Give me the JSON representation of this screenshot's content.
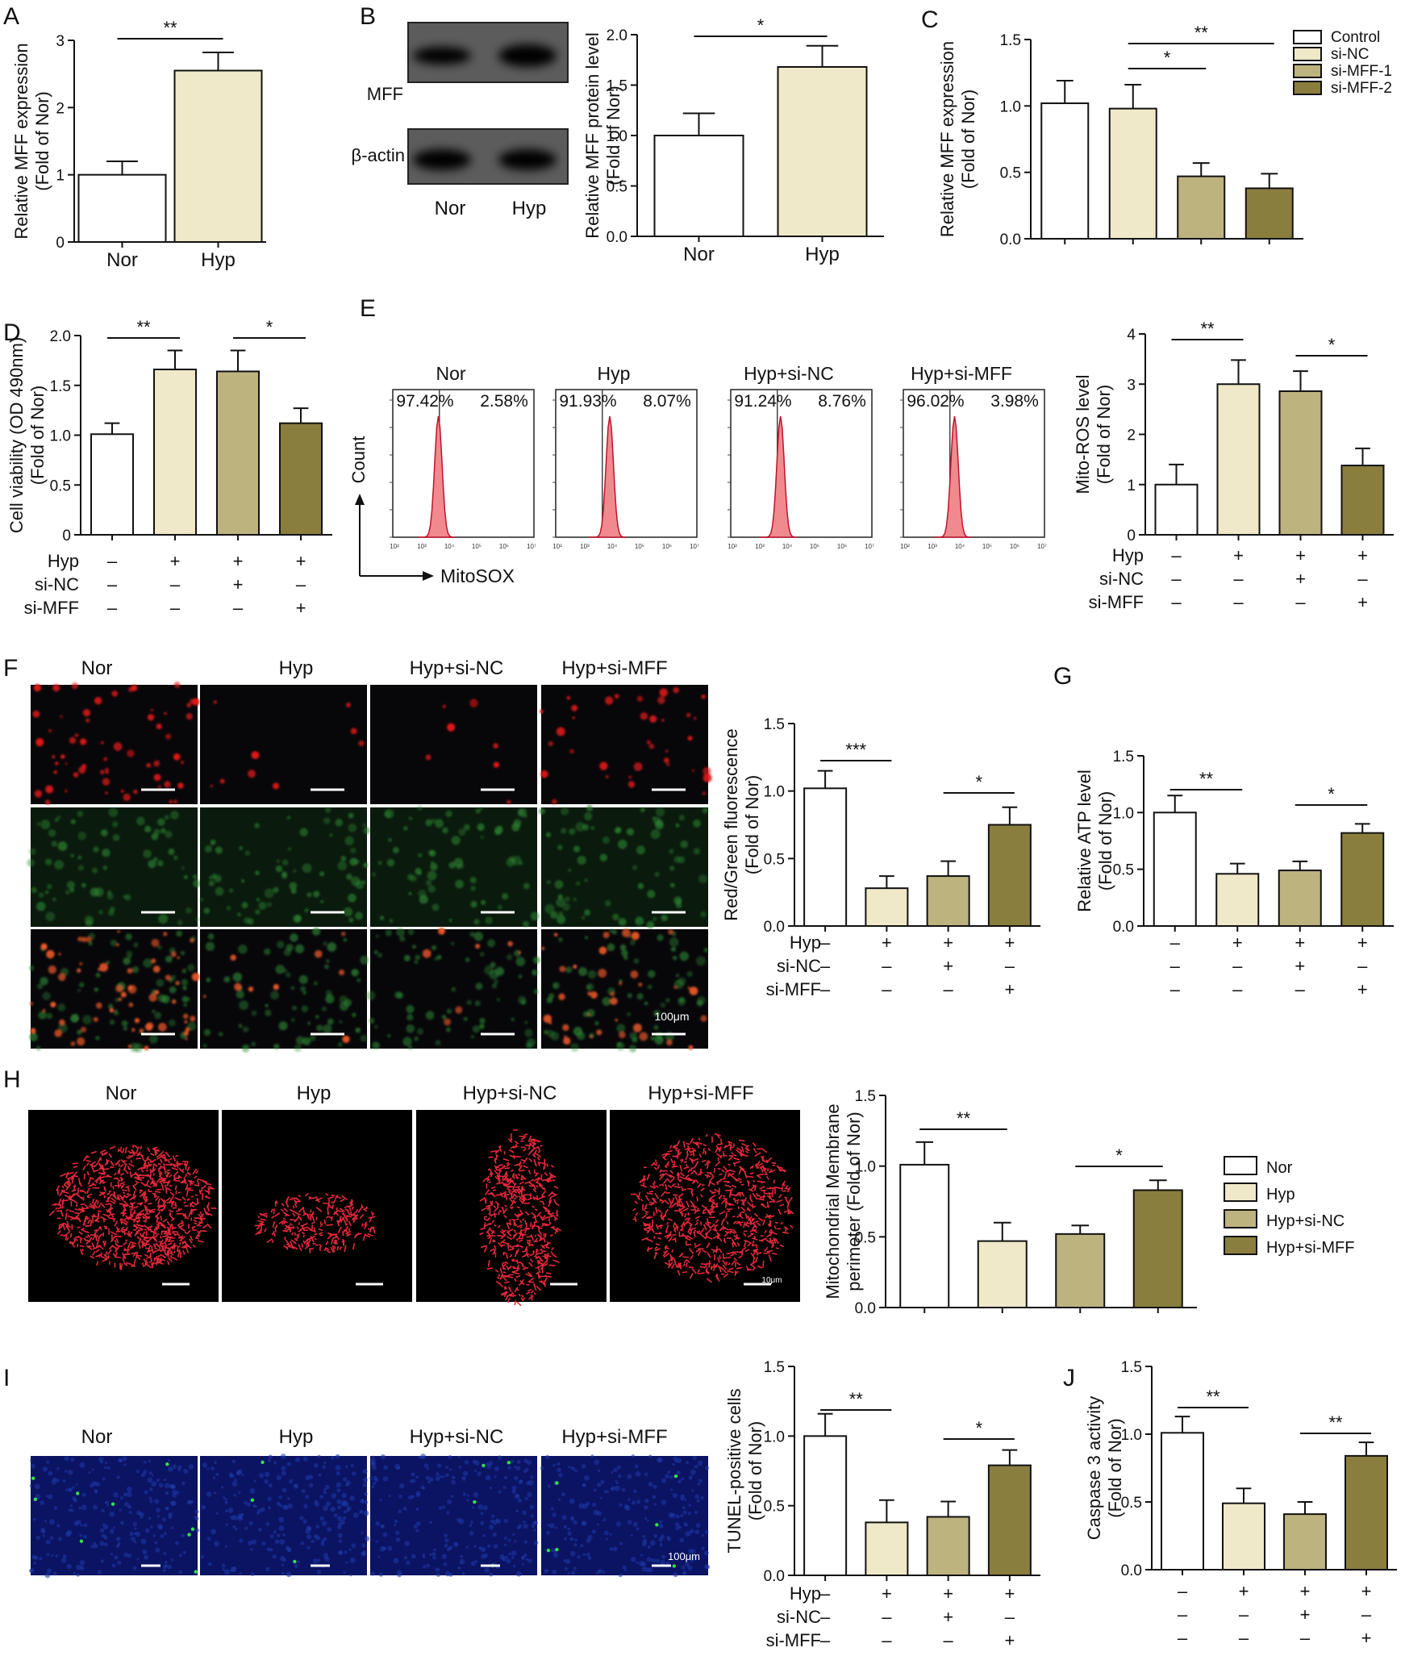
{
  "colors": {
    "control": "#ffffff",
    "light": "#efe9c9",
    "mid": "#bdb37f",
    "dark": "#8a7e3e",
    "mfff_red": "#e8283a",
    "histo_fill": "#f08a8f",
    "blot_bg": "#5c5c5c",
    "fluor_bg": "#07070a",
    "tunel_bg": "#0b1363"
  },
  "panel_letters": [
    "A",
    "B",
    "C",
    "D",
    "E",
    "F",
    "G",
    "H",
    "I",
    "J"
  ],
  "conditions": {
    "hyp_label": "Hyp",
    "sinc_label": "si-NC",
    "simff_label": "si-MFF",
    "plus": "+",
    "minus": "–",
    "hyp": [
      "–",
      "+",
      "+",
      "+"
    ],
    "sinc": [
      "–",
      "–",
      "+",
      "–"
    ],
    "simff": [
      "–",
      "–",
      "–",
      "+"
    ]
  },
  "legend_C": [
    "Control",
    "si-NC",
    "si-MFF-1",
    "si-MFF-2"
  ],
  "legend_H": [
    "Nor",
    "Hyp",
    "Hyp+si-NC",
    "Hyp+si-MFF"
  ],
  "blot": {
    "mff_label": "MFF",
    "actin_label": "β-actin",
    "lanes": [
      "Nor",
      "Hyp"
    ]
  },
  "flow": {
    "groups": [
      "Nor",
      "Hyp",
      "Hyp+si-NC",
      "Hyp+si-MFF"
    ],
    "left_pct": [
      "97.42%",
      "91.93%",
      "91.24%",
      "96.02%"
    ],
    "right_pct": [
      "2.58%",
      "8.07%",
      "8.76%",
      "3.98%"
    ],
    "y_axis": "Count",
    "x_axis": "MitoSOX",
    "x_ticks": [
      "10²",
      "10³",
      "10⁴",
      "10⁵",
      "10⁶",
      "10⁷"
    ]
  },
  "image_panels": {
    "F": {
      "columns": [
        "Nor",
        "Hyp",
        "Hyp+si-NC",
        "Hyp+si-MFF"
      ],
      "scale": "100μm"
    },
    "H": {
      "columns": [
        "Nor",
        "Hyp",
        "Hyp+si-NC",
        "Hyp+si-MFF"
      ],
      "scale": "10μm"
    },
    "I": {
      "columns": [
        "Nor",
        "Hyp",
        "Hyp+si-NC",
        "Hyp+si-MFF"
      ],
      "scale": "100μm"
    }
  },
  "chart_data": [
    {
      "id": "A",
      "type": "bar",
      "ylabel": [
        "Relative MFF expression",
        "(Fold of Nor)"
      ],
      "categories": [
        "Nor",
        "Hyp"
      ],
      "values": [
        1.0,
        2.55
      ],
      "errors": [
        0.2,
        0.27
      ],
      "ylim": [
        0,
        3
      ],
      "yticks": [
        "0",
        "1",
        "2",
        "3"
      ],
      "sig": [
        {
          "from": 0,
          "to": 1,
          "label": "**"
        }
      ]
    },
    {
      "id": "B",
      "type": "bar",
      "ylabel": [
        "Relative MFF protein level",
        "(Fold of Nor)"
      ],
      "categories": [
        "Nor",
        "Hyp"
      ],
      "values": [
        1.0,
        1.68
      ],
      "errors": [
        0.22,
        0.21
      ],
      "ylim": [
        0,
        2
      ],
      "yticks": [
        "0.0",
        "0.5",
        "1.0",
        "1.5",
        "2.0"
      ],
      "sig": [
        {
          "from": 0,
          "to": 1,
          "label": "*"
        }
      ]
    },
    {
      "id": "C",
      "type": "bar",
      "ylabel": [
        "Relative MFF expression",
        "(Fold of Nor)"
      ],
      "categories": [
        "Control",
        "si-NC",
        "si-MFF-1",
        "si-MFF-2"
      ],
      "values": [
        1.02,
        0.98,
        0.47,
        0.38
      ],
      "errors": [
        0.17,
        0.18,
        0.1,
        0.11
      ],
      "ylim": [
        0,
        1.5
      ],
      "yticks": [
        "0.0",
        "0.5",
        "1.0",
        "1.5"
      ],
      "sig": [
        {
          "from": 1,
          "to": 2,
          "label": "*"
        },
        {
          "from": 1,
          "to": 3,
          "label": "**"
        }
      ]
    },
    {
      "id": "D",
      "type": "bar",
      "ylabel": [
        "Cell viability (OD 490nm)",
        "(Fold of Nor)"
      ],
      "categories": [
        "Nor",
        "Hyp",
        "Hyp+si-NC",
        "Hyp+si-MFF"
      ],
      "values": [
        1.01,
        1.66,
        1.64,
        1.12
      ],
      "errors": [
        0.11,
        0.19,
        0.21,
        0.15
      ],
      "ylim": [
        0,
        2
      ],
      "yticks": [
        "0",
        "0.5",
        "1.0",
        "1.5",
        "2.0"
      ],
      "sig": [
        {
          "from": 0,
          "to": 1,
          "label": "**"
        },
        {
          "from": 2,
          "to": 3,
          "label": "*"
        }
      ]
    },
    {
      "id": "E",
      "type": "bar",
      "ylabel": [
        "Mito-ROS level",
        "(Fold of Nor)"
      ],
      "categories": [
        "Nor",
        "Hyp",
        "Hyp+si-NC",
        "Hyp+si-MFF"
      ],
      "values": [
        1.0,
        3.0,
        2.86,
        1.38
      ],
      "errors": [
        0.4,
        0.48,
        0.4,
        0.34
      ],
      "ylim": [
        0,
        4
      ],
      "yticks": [
        "0",
        "1",
        "2",
        "3",
        "4"
      ],
      "sig": [
        {
          "from": 0,
          "to": 1,
          "label": "**"
        },
        {
          "from": 2,
          "to": 3,
          "label": "*"
        }
      ]
    },
    {
      "id": "F",
      "type": "bar",
      "ylabel": [
        "Red/Green fluorescence",
        "(Fold of Nor)"
      ],
      "categories": [
        "Nor",
        "Hyp",
        "Hyp+si-NC",
        "Hyp+si-MFF"
      ],
      "values": [
        1.02,
        0.28,
        0.37,
        0.75
      ],
      "errors": [
        0.13,
        0.09,
        0.11,
        0.13
      ],
      "ylim": [
        0,
        1.5
      ],
      "yticks": [
        "0.0",
        "0.5",
        "1.0",
        "1.5"
      ],
      "sig": [
        {
          "from": 0,
          "to": 1,
          "label": "***"
        },
        {
          "from": 2,
          "to": 3,
          "label": "*"
        }
      ]
    },
    {
      "id": "G",
      "type": "bar",
      "ylabel": [
        "Relative ATP level",
        "(Fold of Nor)"
      ],
      "categories": [
        "Nor",
        "Hyp",
        "Hyp+si-NC",
        "Hyp+si-MFF"
      ],
      "values": [
        1.0,
        0.46,
        0.49,
        0.82
      ],
      "errors": [
        0.15,
        0.09,
        0.08,
        0.08
      ],
      "ylim": [
        0,
        1.5
      ],
      "yticks": [
        "0.0",
        "0.5",
        "1.0",
        "1.5"
      ],
      "sig": [
        {
          "from": 0,
          "to": 1,
          "label": "**"
        },
        {
          "from": 2,
          "to": 3,
          "label": "*"
        }
      ]
    },
    {
      "id": "H",
      "type": "bar",
      "ylabel": [
        "Mitochondrial Membrane",
        "perimeter (Fold of Nor)"
      ],
      "categories": [
        "Nor",
        "Hyp",
        "Hyp+si-NC",
        "Hyp+si-MFF"
      ],
      "values": [
        1.01,
        0.47,
        0.52,
        0.83
      ],
      "errors": [
        0.16,
        0.13,
        0.06,
        0.07
      ],
      "ylim": [
        0,
        1.5
      ],
      "yticks": [
        "0.0",
        "0.5",
        "1.0",
        "1.5"
      ],
      "sig": [
        {
          "from": 0,
          "to": 1,
          "label": "**"
        },
        {
          "from": 2,
          "to": 3,
          "label": "*"
        }
      ]
    },
    {
      "id": "I",
      "type": "bar",
      "ylabel": [
        "TUNEL-positive cells",
        "(Fold of Nor)"
      ],
      "categories": [
        "Nor",
        "Hyp",
        "Hyp+si-NC",
        "Hyp+si-MFF"
      ],
      "values": [
        1.0,
        0.38,
        0.42,
        0.79
      ],
      "errors": [
        0.16,
        0.16,
        0.11,
        0.11
      ],
      "ylim": [
        0,
        1.5
      ],
      "yticks": [
        "0.0",
        "0.5",
        "1.0",
        "1.5"
      ],
      "sig": [
        {
          "from": 0,
          "to": 1,
          "label": "**"
        },
        {
          "from": 2,
          "to": 3,
          "label": "*"
        }
      ]
    },
    {
      "id": "J",
      "type": "bar",
      "ylabel": [
        "Caspase 3 activity",
        "(Fold of Nor)"
      ],
      "categories": [
        "Nor",
        "Hyp",
        "Hyp+si-NC",
        "Hyp+si-MFF"
      ],
      "values": [
        1.01,
        0.49,
        0.41,
        0.84
      ],
      "errors": [
        0.12,
        0.11,
        0.09,
        0.1
      ],
      "ylim": [
        0,
        1.5
      ],
      "yticks": [
        "0.0",
        "0.5",
        "1.0",
        "1.5"
      ],
      "sig": [
        {
          "from": 0,
          "to": 1,
          "label": "**"
        },
        {
          "from": 2,
          "to": 3,
          "label": "**"
        }
      ]
    }
  ]
}
